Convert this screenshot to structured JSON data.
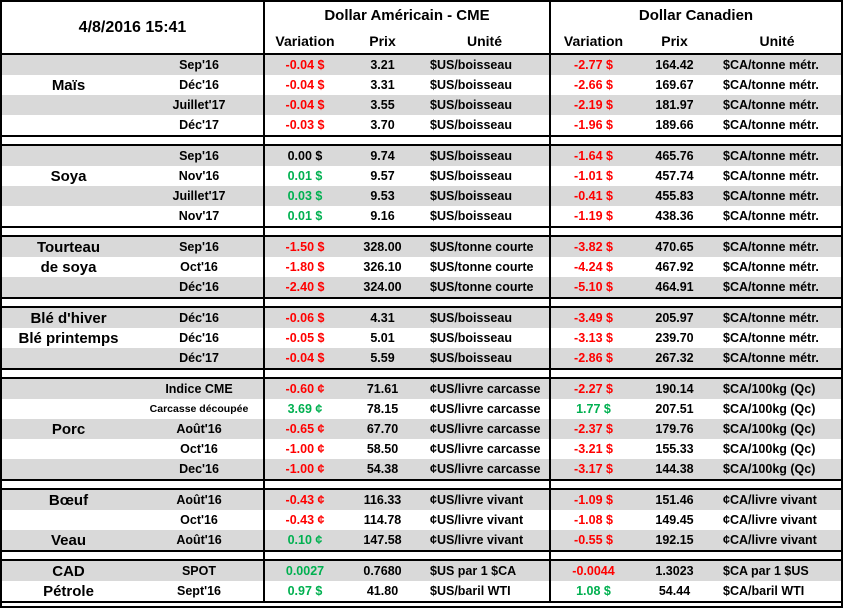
{
  "header": {
    "datetime": "4/8/2016 15:41",
    "us_title": "Dollar Américain - CME",
    "ca_title": "Dollar Canadien",
    "columns": {
      "variation": "Variation",
      "prix": "Prix",
      "unite": "Unité"
    }
  },
  "colors": {
    "negative": "#FF0000",
    "positive": "#00B050",
    "neutral": "#000000",
    "band": "#D9D9D9",
    "border": "#000000"
  },
  "groups": [
    {
      "name": "Maïs",
      "rows": [
        {
          "label": "",
          "month": "Sep'16",
          "us_var": "-0.04 $",
          "us_trend": "down",
          "us_prix": "3.21",
          "us_unit": "$US/boisseau",
          "ca_var": "-2.77 $",
          "ca_trend": "down",
          "ca_prix": "164.42",
          "ca_unit": "$CA/tonne métr."
        },
        {
          "label": "Maïs",
          "month": "Déc'16",
          "us_var": "-0.04 $",
          "us_trend": "down",
          "us_prix": "3.31",
          "us_unit": "$US/boisseau",
          "ca_var": "-2.66 $",
          "ca_trend": "down",
          "ca_prix": "169.67",
          "ca_unit": "$CA/tonne métr."
        },
        {
          "label": "",
          "month": "Juillet'17",
          "us_var": "-0.04 $",
          "us_trend": "down",
          "us_prix": "3.55",
          "us_unit": "$US/boisseau",
          "ca_var": "-2.19 $",
          "ca_trend": "down",
          "ca_prix": "181.97",
          "ca_unit": "$CA/tonne métr."
        },
        {
          "label": "",
          "month": "Déc'17",
          "us_var": "-0.03 $",
          "us_trend": "down",
          "us_prix": "3.70",
          "us_unit": "$US/boisseau",
          "ca_var": "-1.96 $",
          "ca_trend": "down",
          "ca_prix": "189.66",
          "ca_unit": "$CA/tonne métr."
        }
      ]
    },
    {
      "name": "Soya",
      "rows": [
        {
          "label": "",
          "month": "Sep'16",
          "us_var": "0.00 $",
          "us_trend": "flat",
          "us_prix": "9.74",
          "us_unit": "$US/boisseau",
          "ca_var": "-1.64 $",
          "ca_trend": "down",
          "ca_prix": "465.76",
          "ca_unit": "$CA/tonne métr."
        },
        {
          "label": "Soya",
          "month": "Nov'16",
          "us_var": "0.01 $",
          "us_trend": "up",
          "us_prix": "9.57",
          "us_unit": "$US/boisseau",
          "ca_var": "-1.01 $",
          "ca_trend": "down",
          "ca_prix": "457.74",
          "ca_unit": "$CA/tonne métr."
        },
        {
          "label": "",
          "month": "Juillet'17",
          "us_var": "0.03 $",
          "us_trend": "up",
          "us_prix": "9.53",
          "us_unit": "$US/boisseau",
          "ca_var": "-0.41 $",
          "ca_trend": "down",
          "ca_prix": "455.83",
          "ca_unit": "$CA/tonne métr."
        },
        {
          "label": "",
          "month": "Nov'17",
          "us_var": "0.01 $",
          "us_trend": "up",
          "us_prix": "9.16",
          "us_unit": "$US/boisseau",
          "ca_var": "-1.19 $",
          "ca_trend": "down",
          "ca_prix": "438.36",
          "ca_unit": "$CA/tonne métr."
        }
      ]
    },
    {
      "name": "Tourteau de soya",
      "rows": [
        {
          "label": "Tourteau",
          "month": "Sep'16",
          "us_var": "-1.50 $",
          "us_trend": "down",
          "us_prix": "328.00",
          "us_unit": "$US/tonne courte",
          "ca_var": "-3.82 $",
          "ca_trend": "down",
          "ca_prix": "470.65",
          "ca_unit": "$CA/tonne métr."
        },
        {
          "label": "de soya",
          "month": "Oct'16",
          "us_var": "-1.80 $",
          "us_trend": "down",
          "us_prix": "326.10",
          "us_unit": "$US/tonne courte",
          "ca_var": "-4.24 $",
          "ca_trend": "down",
          "ca_prix": "467.92",
          "ca_unit": "$CA/tonne métr."
        },
        {
          "label": "",
          "month": "Déc'16",
          "us_var": "-2.40 $",
          "us_trend": "down",
          "us_prix": "324.00",
          "us_unit": "$US/tonne courte",
          "ca_var": "-5.10 $",
          "ca_trend": "down",
          "ca_prix": "464.91",
          "ca_unit": "$CA/tonne métr."
        }
      ]
    },
    {
      "name": "Blé",
      "rows": [
        {
          "label": "Blé d'hiver",
          "month": "Déc'16",
          "us_var": "-0.06 $",
          "us_trend": "down",
          "us_prix": "4.31",
          "us_unit": "$US/boisseau",
          "ca_var": "-3.49 $",
          "ca_trend": "down",
          "ca_prix": "205.97",
          "ca_unit": "$CA/tonne métr."
        },
        {
          "label": "Blé printemps",
          "month": "Déc'16",
          "us_var": "-0.05 $",
          "us_trend": "down",
          "us_prix": "5.01",
          "us_unit": "$US/boisseau",
          "ca_var": "-3.13 $",
          "ca_trend": "down",
          "ca_prix": "239.70",
          "ca_unit": "$CA/tonne métr."
        },
        {
          "label": "",
          "month": "Déc'17",
          "us_var": "-0.04 $",
          "us_trend": "down",
          "us_prix": "5.59",
          "us_unit": "$US/boisseau",
          "ca_var": "-2.86 $",
          "ca_trend": "down",
          "ca_prix": "267.32",
          "ca_unit": "$CA/tonne métr."
        }
      ]
    },
    {
      "name": "Porc",
      "rows": [
        {
          "label": "",
          "month": "Indice CME",
          "us_var": "-0.60 ¢",
          "us_trend": "down",
          "us_prix": "71.61",
          "us_unit": "¢US/livre carcasse",
          "ca_var": "-2.27 $",
          "ca_trend": "down",
          "ca_prix": "190.14",
          "ca_unit": "$CA/100kg (Qc)"
        },
        {
          "label": "",
          "month": "Carcasse découpée",
          "month_small": true,
          "us_var": "3.69 ¢",
          "us_trend": "up",
          "us_prix": "78.15",
          "us_unit": "¢US/livre carcasse",
          "ca_var": "1.77 $",
          "ca_trend": "up",
          "ca_prix": "207.51",
          "ca_unit": "$CA/100kg (Qc)"
        },
        {
          "label": "Porc",
          "month": "Août'16",
          "us_var": "-0.65 ¢",
          "us_trend": "down",
          "us_prix": "67.70",
          "us_unit": "¢US/livre carcasse",
          "ca_var": "-2.37 $",
          "ca_trend": "down",
          "ca_prix": "179.76",
          "ca_unit": "$CA/100kg (Qc)"
        },
        {
          "label": "",
          "month": "Oct'16",
          "us_var": "-1.00 ¢",
          "us_trend": "down",
          "us_prix": "58.50",
          "us_unit": "¢US/livre carcasse",
          "ca_var": "-3.21 $",
          "ca_trend": "down",
          "ca_prix": "155.33",
          "ca_unit": "$CA/100kg (Qc)"
        },
        {
          "label": "",
          "month": "Dec'16",
          "us_var": "-1.00 ¢",
          "us_trend": "down",
          "us_prix": "54.38",
          "us_unit": "¢US/livre carcasse",
          "ca_var": "-3.17 $",
          "ca_trend": "down",
          "ca_prix": "144.38",
          "ca_unit": "$CA/100kg (Qc)"
        }
      ]
    },
    {
      "name": "Bœuf / Veau",
      "rows": [
        {
          "label": "Bœuf",
          "month": "Août'16",
          "us_var": "-0.43 ¢",
          "us_trend": "down",
          "us_prix": "116.33",
          "us_unit": "¢US/livre vivant",
          "ca_var": "-1.09 $",
          "ca_trend": "down",
          "ca_prix": "151.46",
          "ca_unit": "¢CA/livre vivant"
        },
        {
          "label": "",
          "month": "Oct'16",
          "us_var": "-0.43 ¢",
          "us_trend": "down",
          "us_prix": "114.78",
          "us_unit": "¢US/livre vivant",
          "ca_var": "-1.08 $",
          "ca_trend": "down",
          "ca_prix": "149.45",
          "ca_unit": "¢CA/livre vivant"
        },
        {
          "label": "Veau",
          "month": "Août'16",
          "us_var": "0.10 ¢",
          "us_trend": "up",
          "us_prix": "147.58",
          "us_unit": "¢US/livre vivant",
          "ca_var": "-0.55 $",
          "ca_trend": "down",
          "ca_prix": "192.15",
          "ca_unit": "¢CA/livre vivant"
        }
      ]
    },
    {
      "name": "CAD / Pétrole",
      "rows": [
        {
          "label": "CAD",
          "month": "SPOT",
          "us_var": "0.0027",
          "us_trend": "up",
          "us_prix": "0.7680",
          "us_unit": "$US par 1 $CA",
          "ca_var": "-0.0044",
          "ca_trend": "down",
          "ca_prix": "1.3023",
          "ca_unit": "$CA par 1 $US"
        },
        {
          "label": "Pétrole",
          "month": "Sept'16",
          "us_var": "0.97 $",
          "us_trend": "up",
          "us_prix": "41.80",
          "us_unit": "$US/baril WTI",
          "ca_var": "1.08 $",
          "ca_trend": "up",
          "ca_prix": "54.44",
          "ca_unit": "$CA/baril WTI"
        }
      ]
    }
  ]
}
